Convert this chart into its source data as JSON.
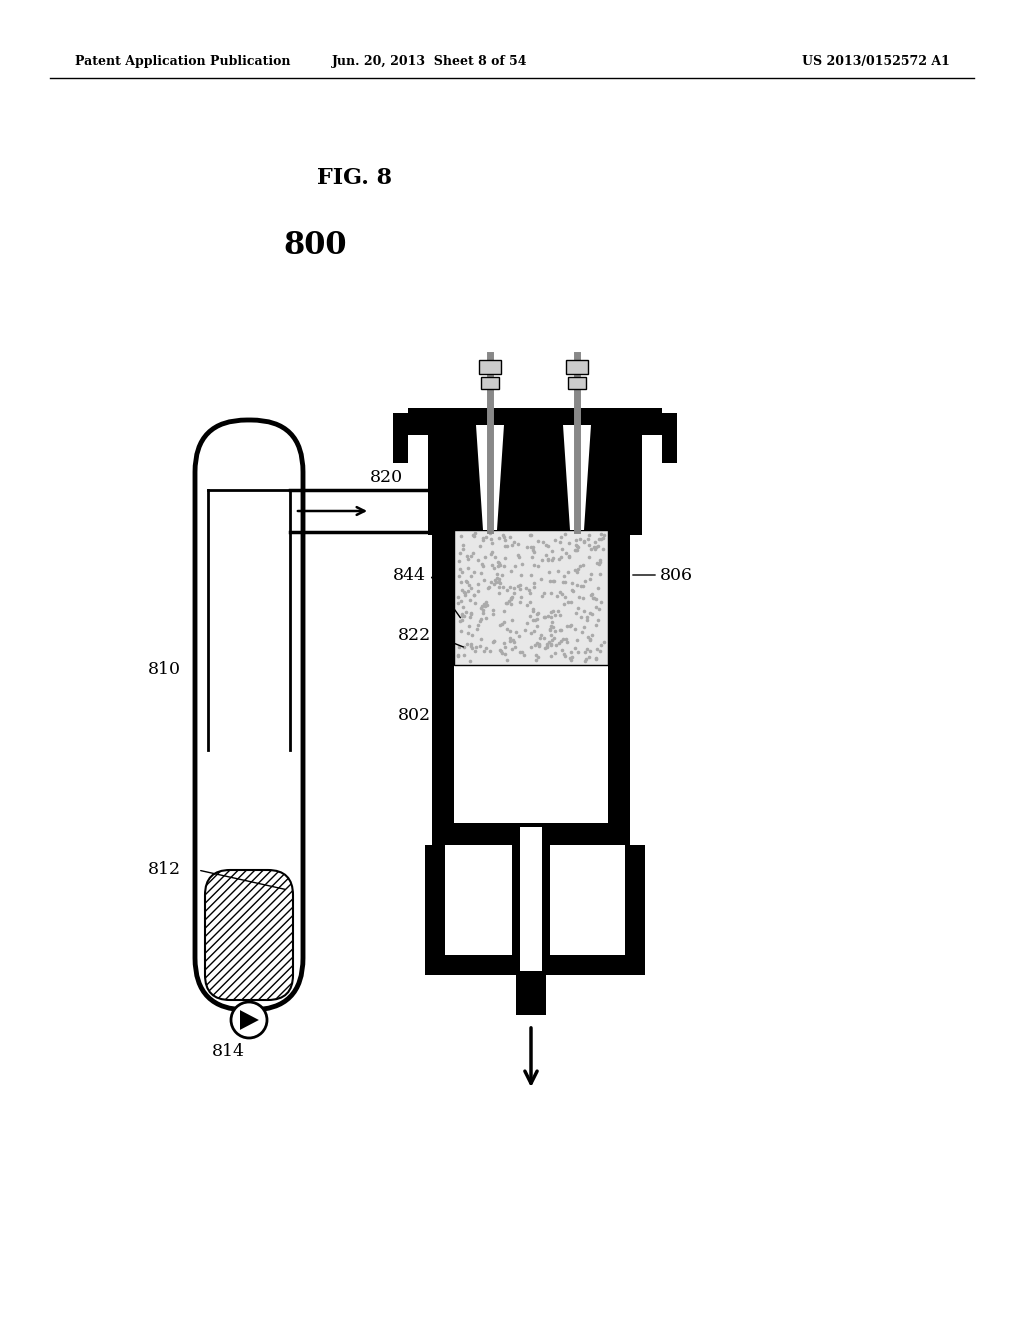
{
  "patent_header_left": "Patent Application Publication",
  "patent_header_mid": "Jun. 20, 2013  Sheet 8 of 54",
  "patent_header_right": "US 2013/0152572 A1",
  "title": "FIG. 8",
  "fig_label": "800",
  "background_color": "#ffffff"
}
